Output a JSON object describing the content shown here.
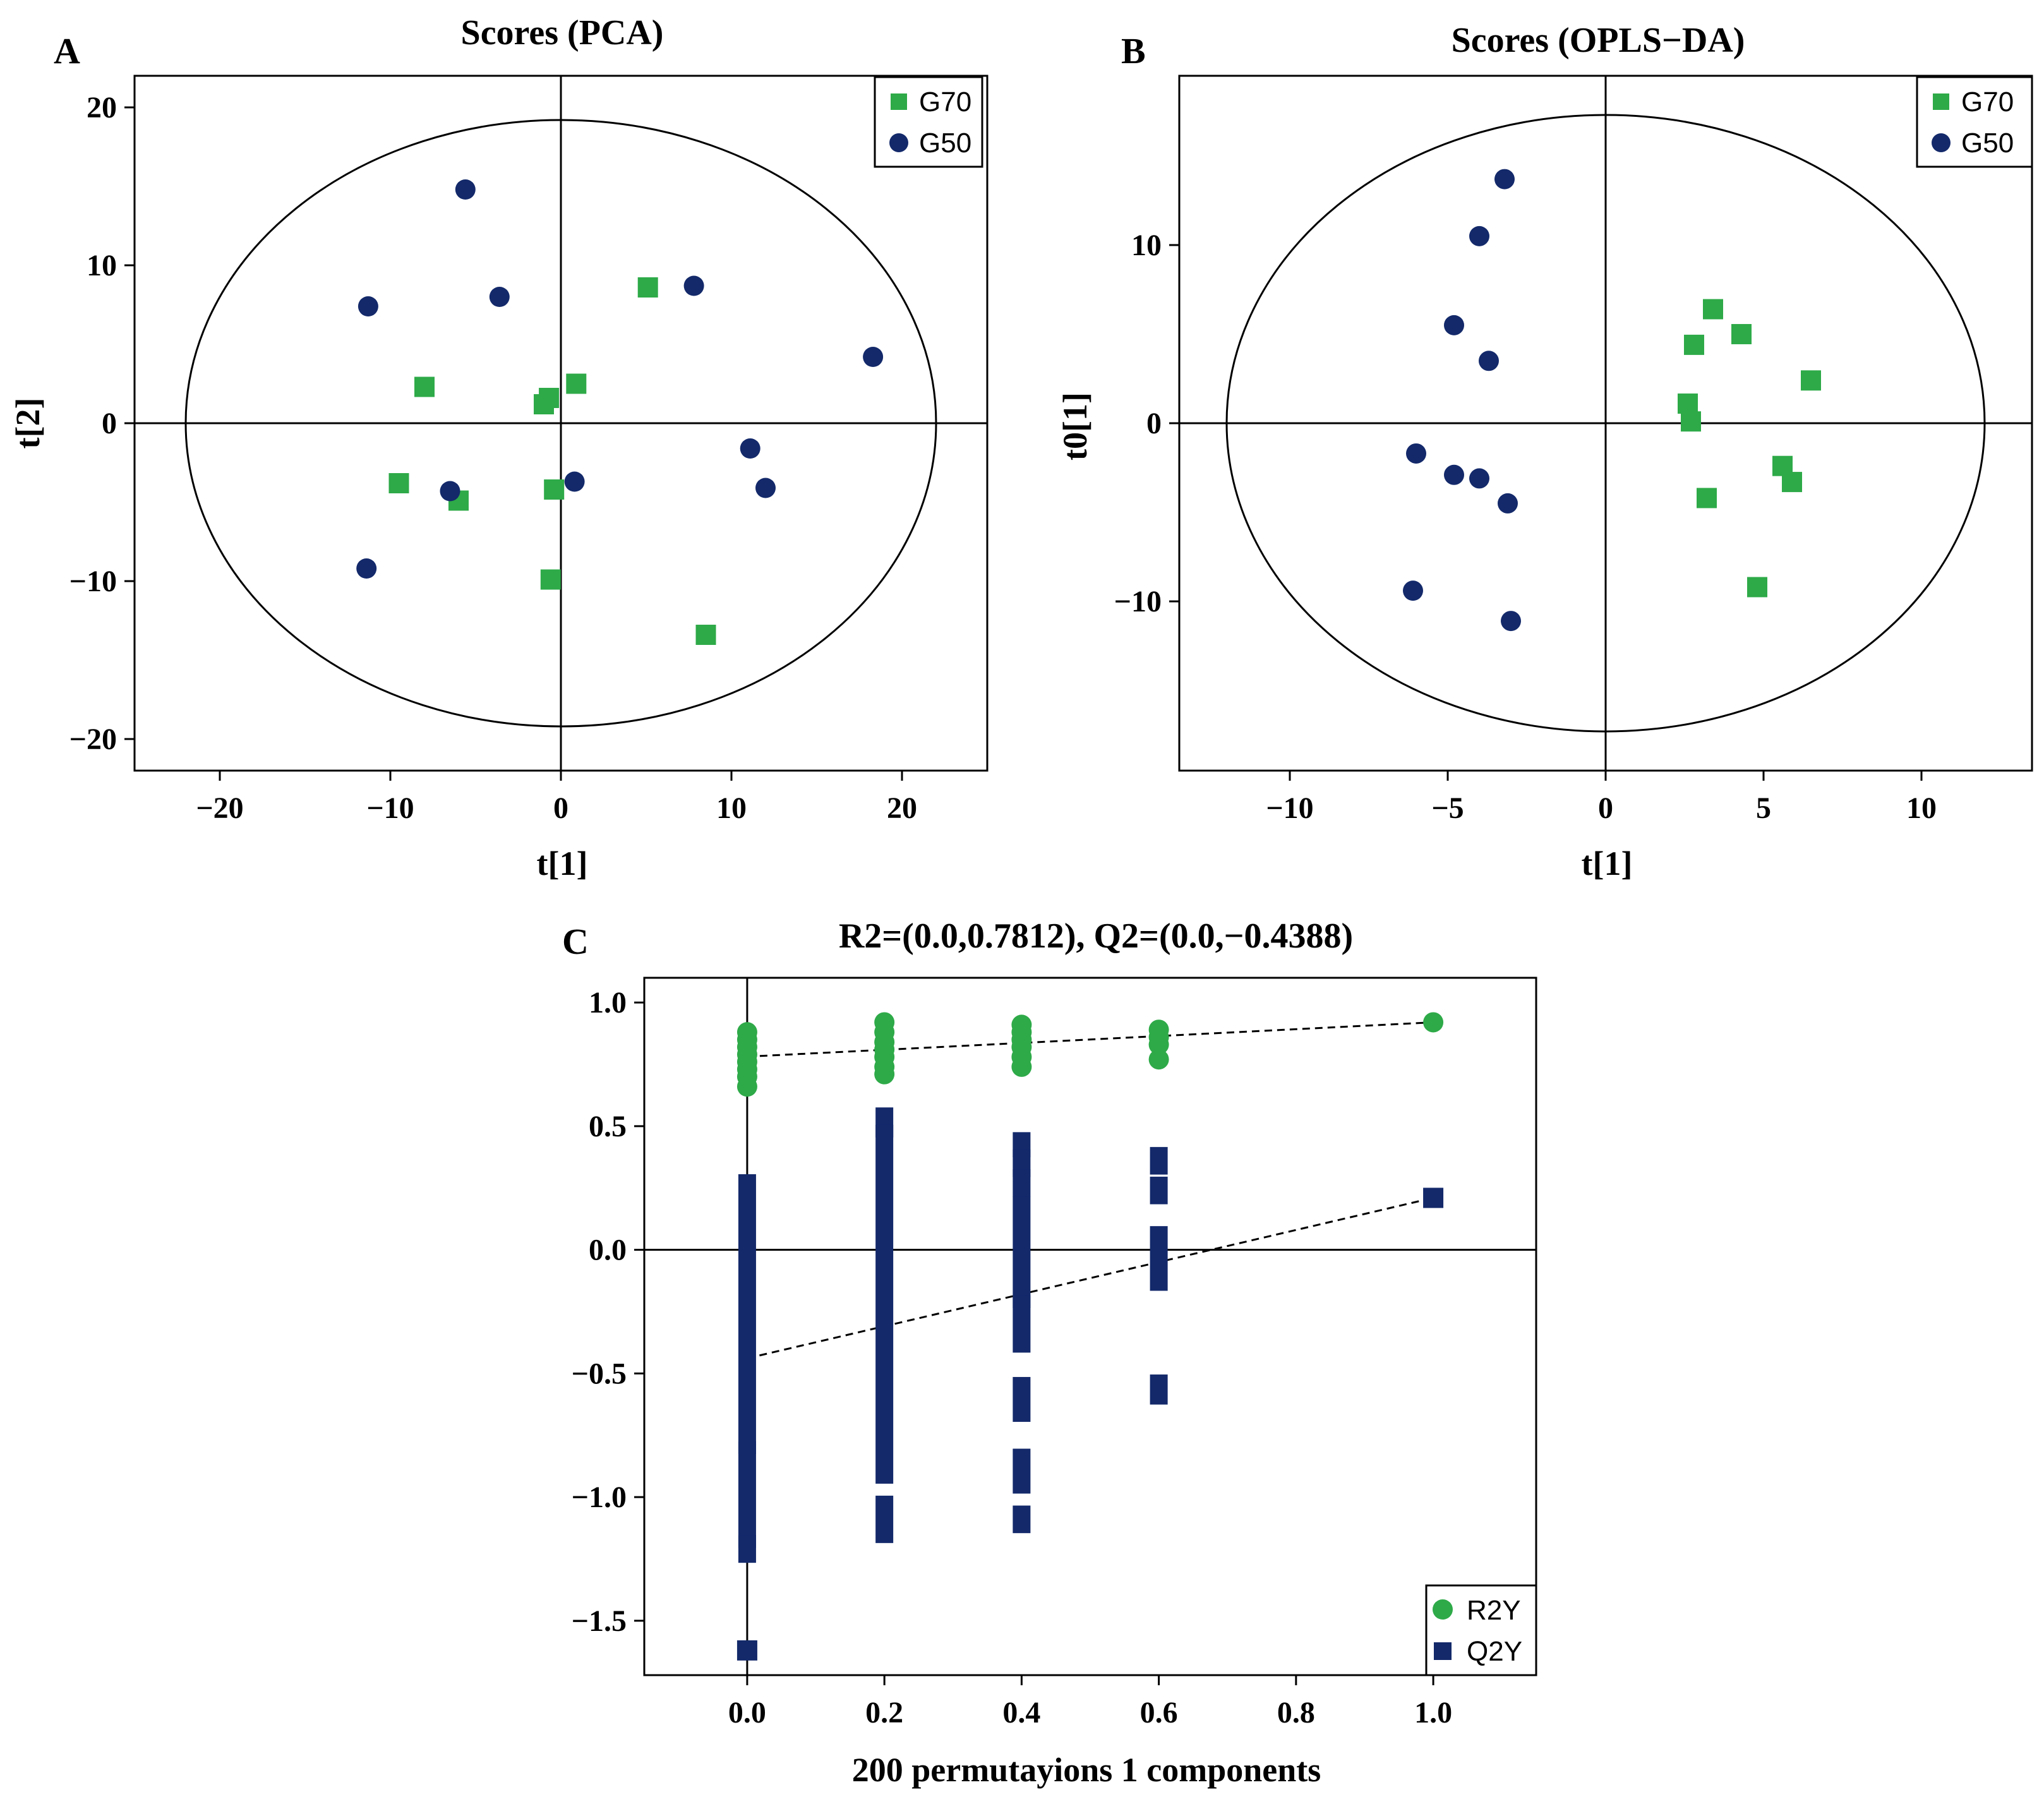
{
  "colors": {
    "green": "#2eaa48",
    "navy": "#13296a",
    "axis": "#000000"
  },
  "panels": {
    "A": {
      "letter": "A",
      "title": "Scores (PCA)",
      "xlabel": "t[1]",
      "ylabel": "t[2]"
    },
    "B": {
      "letter": "B",
      "title": "Scores (OPLS−DA)",
      "xlabel": "t[1]",
      "ylabel": "t0[1]"
    },
    "C": {
      "letter": "C",
      "title": "R2=(0.0,0.7812), Q2=(0.0,−0.4388)",
      "xlabel": "200 permutayions 1 components",
      "ylabel": ""
    }
  },
  "chart_data": [
    {
      "id": "A",
      "type": "scatter",
      "title": "Scores (PCA)",
      "xlabel": "t[1]",
      "ylabel": "t[2]",
      "xlim": [
        -25,
        25
      ],
      "ylim": [
        -22,
        22
      ],
      "xticks": [
        -20,
        -10,
        0,
        10,
        20
      ],
      "yticks": [
        -20,
        -10,
        0,
        10,
        20
      ],
      "ellipse": {
        "rx": 22,
        "ry": 19.2
      },
      "legend": "top-right",
      "series": [
        {
          "name": "G70",
          "marker": "square",
          "color": "#2eaa48",
          "points": [
            [
              5.1,
              8.6
            ],
            [
              -8.0,
              2.3
            ],
            [
              0.9,
              2.5
            ],
            [
              -0.7,
              1.6
            ],
            [
              -1.0,
              1.2
            ],
            [
              -9.5,
              -3.8
            ],
            [
              -6.0,
              -4.9
            ],
            [
              -0.4,
              -4.2
            ],
            [
              -0.6,
              -9.9
            ],
            [
              8.5,
              -13.4
            ]
          ]
        },
        {
          "name": "G50",
          "marker": "circle",
          "color": "#13296a",
          "points": [
            [
              -5.6,
              14.8
            ],
            [
              -11.3,
              7.4
            ],
            [
              -3.6,
              8.0
            ],
            [
              7.8,
              8.7
            ],
            [
              18.3,
              4.2
            ],
            [
              -6.5,
              -4.3
            ],
            [
              0.8,
              -3.7
            ],
            [
              11.1,
              -1.6
            ],
            [
              12.0,
              -4.1
            ],
            [
              -11.4,
              -9.2
            ]
          ]
        }
      ]
    },
    {
      "id": "B",
      "type": "scatter",
      "title": "Scores (OPLS−DA)",
      "xlabel": "t[1]",
      "ylabel": "t0[1]",
      "xlim": [
        -13.5,
        13.5
      ],
      "ylim": [
        -19.5,
        19.5
      ],
      "xticks": [
        -10,
        -5,
        0,
        5,
        10
      ],
      "yticks": [
        -10,
        0,
        10
      ],
      "ellipse": {
        "rx": 12.0,
        "ry": 17.3
      },
      "legend": "top-right",
      "series": [
        {
          "name": "G70",
          "marker": "square",
          "color": "#2eaa48",
          "points": [
            [
              3.4,
              6.4
            ],
            [
              2.8,
              4.4
            ],
            [
              4.3,
              5.0
            ],
            [
              6.5,
              2.4
            ],
            [
              2.6,
              1.1
            ],
            [
              2.7,
              0.1
            ],
            [
              5.6,
              -2.4
            ],
            [
              5.9,
              -3.3
            ],
            [
              3.2,
              -4.2
            ],
            [
              4.8,
              -9.2
            ]
          ]
        },
        {
          "name": "G50",
          "marker": "circle",
          "color": "#13296a",
          "points": [
            [
              -3.2,
              13.7
            ],
            [
              -4.0,
              10.5
            ],
            [
              -4.8,
              5.5
            ],
            [
              -3.7,
              3.5
            ],
            [
              -6.0,
              -1.7
            ],
            [
              -4.8,
              -2.9
            ],
            [
              -4.0,
              -3.1
            ],
            [
              -3.1,
              -4.5
            ],
            [
              -6.1,
              -9.4
            ],
            [
              -3.0,
              -11.1
            ]
          ]
        }
      ]
    },
    {
      "id": "C",
      "type": "scatter",
      "title": "R2=(0.0,0.7812), Q2=(0.0,−0.4388)",
      "xlabel": "200 permutayions 1 components",
      "ylabel": "",
      "xlim": [
        -0.15,
        1.15
      ],
      "ylim": [
        -1.72,
        1.1
      ],
      "xticks": [
        0.0,
        0.2,
        0.4,
        0.6,
        0.8,
        1.0
      ],
      "yticks": [
        1.0,
        0.5,
        0.0,
        -0.5,
        -1.0,
        -1.5
      ],
      "legend": "bottom-right",
      "series": [
        {
          "name": "R2Y",
          "marker": "circle",
          "color": "#2eaa48",
          "points": [
            [
              0.0,
              0.66
            ],
            [
              0.0,
              0.7
            ],
            [
              0.0,
              0.73
            ],
            [
              0.0,
              0.76
            ],
            [
              0.0,
              0.79
            ],
            [
              0.0,
              0.82
            ],
            [
              0.0,
              0.85
            ],
            [
              0.0,
              0.88
            ],
            [
              0.2,
              0.71
            ],
            [
              0.2,
              0.74
            ],
            [
              0.2,
              0.78
            ],
            [
              0.2,
              0.81
            ],
            [
              0.2,
              0.84
            ],
            [
              0.2,
              0.88
            ],
            [
              0.2,
              0.92
            ],
            [
              0.4,
              0.74
            ],
            [
              0.4,
              0.78
            ],
            [
              0.4,
              0.82
            ],
            [
              0.4,
              0.85
            ],
            [
              0.4,
              0.88
            ],
            [
              0.4,
              0.91
            ],
            [
              0.6,
              0.77
            ],
            [
              0.6,
              0.83
            ],
            [
              0.6,
              0.86
            ],
            [
              0.6,
              0.89
            ],
            [
              1.0,
              0.92
            ]
          ]
        },
        {
          "name": "Q2Y",
          "marker": "square",
          "color": "#13296a",
          "segments": [
            [
              0.0,
              0.27,
              -0.79
            ],
            [
              0.0,
              -0.81,
              -1.17
            ],
            [
              0.0,
              -1.19,
              -1.23
            ],
            [
              0.2,
              0.54,
              0.49
            ],
            [
              0.2,
              0.47,
              -0.91
            ],
            [
              0.2,
              -1.03,
              -1.15
            ],
            [
              0.4,
              0.44,
              0.41
            ],
            [
              0.4,
              0.37,
              0.33
            ],
            [
              0.4,
              0.29,
              0.25
            ],
            [
              0.4,
              0.18,
              -0.2
            ],
            [
              0.4,
              -0.22,
              -0.38
            ],
            [
              0.4,
              -0.55,
              -0.66
            ],
            [
              0.4,
              -0.84,
              -0.95
            ],
            [
              0.4,
              -1.07,
              -1.11
            ],
            [
              0.6,
              0.38,
              0.34
            ],
            [
              0.6,
              0.26,
              0.22
            ],
            [
              0.6,
              0.06,
              -0.13
            ],
            [
              0.6,
              -0.54,
              -0.59
            ]
          ],
          "points": [
            [
              0.0,
              -1.62
            ],
            [
              1.0,
              0.21
            ]
          ]
        }
      ],
      "reference_lines": [
        {
          "name": "R2Y",
          "from": [
            0.0,
            0.7812
          ],
          "to": [
            1.0,
            0.92
          ]
        },
        {
          "name": "Q2Y",
          "from": [
            0.0,
            -0.4388
          ],
          "to": [
            1.0,
            0.21
          ]
        }
      ]
    }
  ]
}
